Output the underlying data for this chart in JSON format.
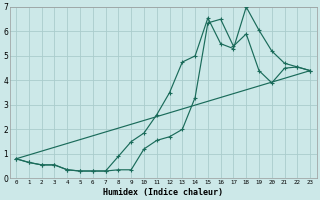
{
  "xlabel": "Humidex (Indice chaleur)",
  "bg_color": "#cce8e8",
  "grid_color": "#aacccc",
  "line_color": "#1a6b5a",
  "xlim": [
    -0.5,
    23.5
  ],
  "ylim": [
    0,
    7
  ],
  "xticks": [
    0,
    1,
    2,
    3,
    4,
    5,
    6,
    7,
    8,
    9,
    10,
    11,
    12,
    13,
    14,
    15,
    16,
    17,
    18,
    19,
    20,
    21,
    22,
    23
  ],
  "yticks": [
    0,
    1,
    2,
    3,
    4,
    5,
    6,
    7
  ],
  "series1_x": [
    0,
    1,
    2,
    3,
    4,
    5,
    6,
    7,
    8,
    9,
    10,
    11,
    12,
    13,
    14,
    15,
    16,
    17,
    18,
    19,
    20,
    21,
    22,
    23
  ],
  "series1_y": [
    0.8,
    0.65,
    0.55,
    0.55,
    0.35,
    0.3,
    0.3,
    0.3,
    0.35,
    0.35,
    1.2,
    1.55,
    1.7,
    2.0,
    3.3,
    6.35,
    6.5,
    5.4,
    5.9,
    4.4,
    3.9,
    4.5,
    4.55,
    4.4
  ],
  "series2_x": [
    0,
    1,
    2,
    3,
    4,
    5,
    6,
    7,
    8,
    9,
    10,
    11,
    12,
    13,
    14,
    15,
    16,
    17,
    18,
    19,
    20,
    21,
    22,
    23
  ],
  "series2_y": [
    0.8,
    0.65,
    0.55,
    0.55,
    0.35,
    0.3,
    0.3,
    0.3,
    0.9,
    1.5,
    1.85,
    2.6,
    3.5,
    4.75,
    5.0,
    6.55,
    5.5,
    5.3,
    7.0,
    6.05,
    5.2,
    4.7,
    4.55,
    4.4
  ],
  "series3_x": [
    0,
    23
  ],
  "series3_y": [
    0.8,
    4.4
  ]
}
